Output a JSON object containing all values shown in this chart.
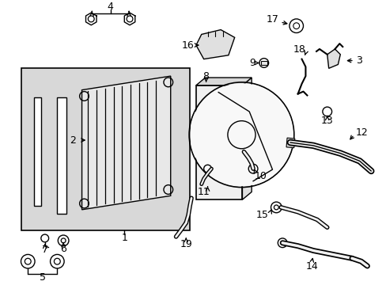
{
  "bg_color": "#ffffff",
  "line_color": "#000000",
  "text_color": "#000000",
  "label_fontsize": 9,
  "figsize": [
    4.89,
    3.6
  ],
  "dpi": 100
}
